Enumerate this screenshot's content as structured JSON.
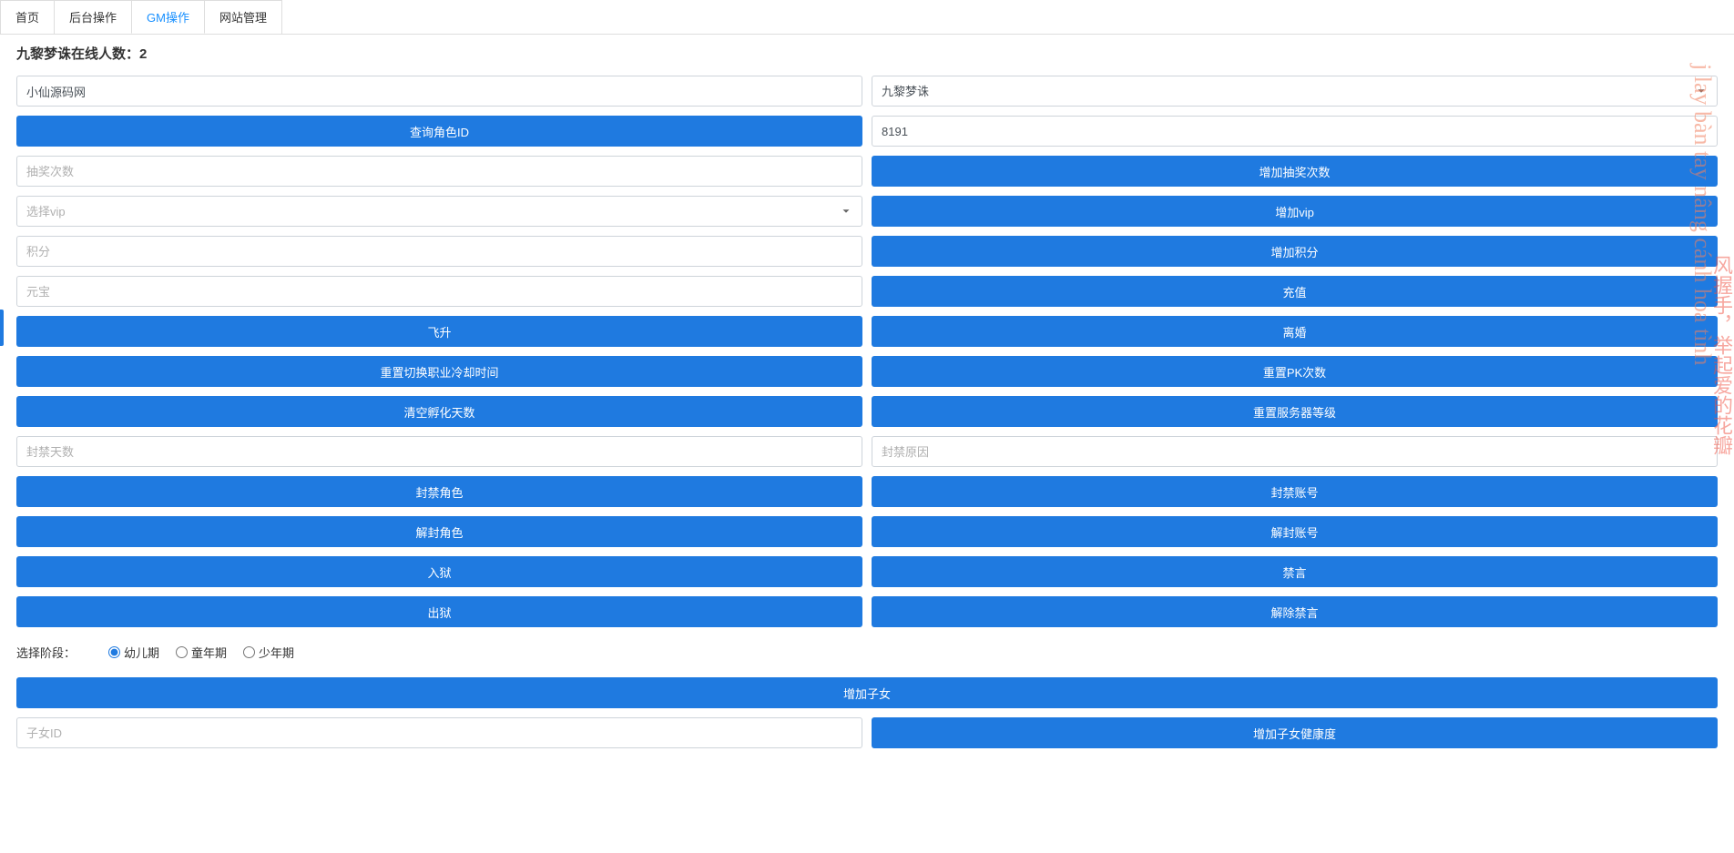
{
  "tabs": {
    "items": [
      "首页",
      "后台操作",
      "GM操作",
      "网站管理"
    ],
    "active_index": 2
  },
  "page_title": "九黎梦诛在线人数：2",
  "left_input_1_value": "小仙源码网",
  "right_select_1_value": "九黎梦诛",
  "btn_query_role": "查询角色ID",
  "input_8191_value": "8191",
  "ph_draw_count": "抽奖次数",
  "btn_add_draw": "增加抽奖次数",
  "ph_select_vip": "选择vip",
  "btn_add_vip": "增加vip",
  "ph_points": "积分",
  "btn_add_points": "增加积分",
  "ph_yuanbao": "元宝",
  "btn_recharge": "充值",
  "btn_feisheng": "飞升",
  "btn_divorce": "离婚",
  "btn_reset_job_cd": "重置切换职业冷却时间",
  "btn_reset_pk": "重置PK次数",
  "btn_clear_hatch": "清空孵化天数",
  "btn_reset_server_lvl": "重置服务器等级",
  "ph_ban_days": "封禁天数",
  "ph_ban_reason": "封禁原因",
  "btn_ban_role": "封禁角色",
  "btn_ban_account": "封禁账号",
  "btn_unban_role": "解封角色",
  "btn_unban_account": "解封账号",
  "btn_jail": "入狱",
  "btn_mute": "禁言",
  "btn_unjail": "出狱",
  "btn_unmute": "解除禁言",
  "stage_label": "选择阶段：",
  "stage_options": [
    "幼儿期",
    "童年期",
    "少年期"
  ],
  "stage_selected": 0,
  "btn_add_child": "增加子女",
  "ph_child_id": "子女ID",
  "btn_add_child_health": "增加子女健康度",
  "watermark_text": "j lay bàn tay nâng cánh hoa tình",
  "watermark_cn": "风握手，举起爱的花瓣",
  "colors": {
    "primary": "#1f7ae0",
    "border": "#ced4da",
    "tab_active": "#1890ff",
    "placeholder": "#b0b0b0",
    "watermark": "#f08060"
  }
}
